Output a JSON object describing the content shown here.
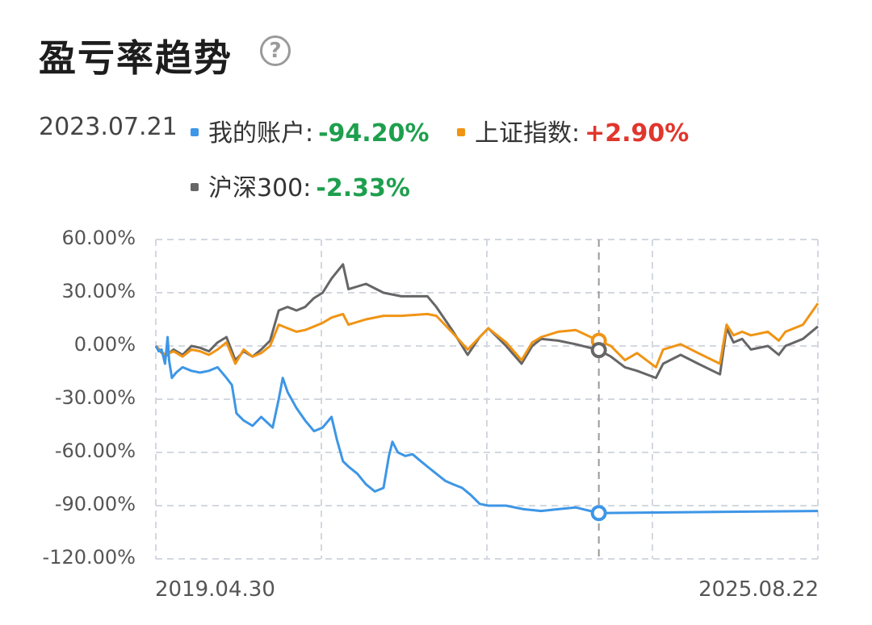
{
  "header": {
    "title": "盈亏率趋势",
    "help_icon": "question-circle-icon"
  },
  "tooltip": {
    "date": "2023.07.21",
    "entries": [
      {
        "label": "我的账户:",
        "value": "-94.20%",
        "dot_color": "#3d96e6",
        "value_color": "#1e9f4e"
      },
      {
        "label": "上证指数:",
        "value": "+2.90%",
        "dot_color": "#f09414",
        "value_color": "#e0362c"
      },
      {
        "label": "沪深300:",
        "value": "-2.33%",
        "dot_color": "#666666",
        "value_color": "#1e9f4e"
      }
    ]
  },
  "chart_data": {
    "type": "line",
    "x_start": "2019.04.30",
    "x_end": "2025.08.22",
    "ylim": [
      -120,
      60
    ],
    "y_ticks": [
      "60.00%",
      "30.00%",
      "0.00%",
      "-30.00%",
      "-60.00%",
      "-90.00%",
      "-120.00%"
    ],
    "grid": true,
    "cursor_date": "2023.07.21",
    "series": [
      {
        "name": "我的账户",
        "color": "#3d96e6",
        "points": [
          [
            "2019.04.30",
            0
          ],
          [
            "2019.05.10",
            -3
          ],
          [
            "2019.05.20",
            -2
          ],
          [
            "2019.06.01",
            -10
          ],
          [
            "2019.06.10",
            5
          ],
          [
            "2019.06.15",
            -8
          ],
          [
            "2019.06.25",
            -18
          ],
          [
            "2019.07.10",
            -15
          ],
          [
            "2019.08.01",
            -12
          ],
          [
            "2019.09.01",
            -14
          ],
          [
            "2019.10.01",
            -15
          ],
          [
            "2019.11.01",
            -14
          ],
          [
            "2019.12.01",
            -12
          ],
          [
            "2020.01.01",
            -18
          ],
          [
            "2020.01.20",
            -22
          ],
          [
            "2020.02.05",
            -38
          ],
          [
            "2020.03.01",
            -42
          ],
          [
            "2020.04.01",
            -45
          ],
          [
            "2020.05.01",
            -40
          ],
          [
            "2020.06.10",
            -46
          ],
          [
            "2020.07.01",
            -30
          ],
          [
            "2020.07.15",
            -18
          ],
          [
            "2020.08.01",
            -26
          ],
          [
            "2020.09.01",
            -35
          ],
          [
            "2020.10.01",
            -42
          ],
          [
            "2020.11.01",
            -48
          ],
          [
            "2020.12.01",
            -46
          ],
          [
            "2021.01.01",
            -40
          ],
          [
            "2021.01.20",
            -53
          ],
          [
            "2021.02.10",
            -65
          ],
          [
            "2021.03.01",
            -68
          ],
          [
            "2021.04.01",
            -72
          ],
          [
            "2021.05.01",
            -78
          ],
          [
            "2021.06.01",
            -82
          ],
          [
            "2021.07.01",
            -80
          ],
          [
            "2021.07.20",
            -62
          ],
          [
            "2021.08.01",
            -54
          ],
          [
            "2021.08.20",
            -60
          ],
          [
            "2021.09.15",
            -62
          ],
          [
            "2021.10.10",
            -61
          ],
          [
            "2021.11.01",
            -64
          ],
          [
            "2021.12.01",
            -68
          ],
          [
            "2022.01.01",
            -72
          ],
          [
            "2022.02.01",
            -76
          ],
          [
            "2022.03.01",
            -78
          ],
          [
            "2022.04.01",
            -80
          ],
          [
            "2022.05.01",
            -84
          ],
          [
            "2022.06.01",
            -89
          ],
          [
            "2022.07.01",
            -90
          ],
          [
            "2022.09.01",
            -90
          ],
          [
            "2022.11.01",
            -92
          ],
          [
            "2023.01.01",
            -93
          ],
          [
            "2023.03.01",
            -92
          ],
          [
            "2023.05.01",
            -91
          ],
          [
            "2023.07.21",
            -94.2
          ],
          [
            "2025.08.22",
            -93
          ]
        ]
      },
      {
        "name": "上证指数",
        "color": "#f09414",
        "points": [
          [
            "2019.04.30",
            0
          ],
          [
            "2019.06.01",
            -5
          ],
          [
            "2019.07.01",
            -3
          ],
          [
            "2019.08.01",
            -6
          ],
          [
            "2019.09.01",
            -2
          ],
          [
            "2019.10.01",
            -3
          ],
          [
            "2019.11.01",
            -5
          ],
          [
            "2019.12.01",
            -2
          ],
          [
            "2020.01.01",
            2
          ],
          [
            "2020.02.01",
            -10
          ],
          [
            "2020.03.01",
            -2
          ],
          [
            "2020.04.01",
            -6
          ],
          [
            "2020.05.01",
            -4
          ],
          [
            "2020.06.01",
            0
          ],
          [
            "2020.07.01",
            12
          ],
          [
            "2020.08.01",
            10
          ],
          [
            "2020.09.01",
            8
          ],
          [
            "2020.10.01",
            9
          ],
          [
            "2020.11.01",
            11
          ],
          [
            "2020.12.01",
            13
          ],
          [
            "2021.01.01",
            16
          ],
          [
            "2021.02.10",
            18
          ],
          [
            "2021.03.01",
            12
          ],
          [
            "2021.05.01",
            15
          ],
          [
            "2021.07.01",
            17
          ],
          [
            "2021.09.01",
            17
          ],
          [
            "2021.12.01",
            18
          ],
          [
            "2022.01.01",
            17
          ],
          [
            "2022.03.01",
            7
          ],
          [
            "2022.04.20",
            -2
          ],
          [
            "2022.06.01",
            5
          ],
          [
            "2022.07.01",
            10
          ],
          [
            "2022.09.01",
            2
          ],
          [
            "2022.10.25",
            -8
          ],
          [
            "2022.12.01",
            2
          ],
          [
            "2023.01.01",
            5
          ],
          [
            "2023.03.01",
            8
          ],
          [
            "2023.05.01",
            9
          ],
          [
            "2023.07.21",
            2.9
          ],
          [
            "2023.09.01",
            0
          ],
          [
            "2023.10.20",
            -8
          ],
          [
            "2023.12.01",
            -4
          ],
          [
            "2024.02.05",
            -12
          ],
          [
            "2024.03.01",
            -2
          ],
          [
            "2024.05.01",
            1
          ],
          [
            "2024.07.01",
            -4
          ],
          [
            "2024.09.15",
            -10
          ],
          [
            "2024.10.08",
            12
          ],
          [
            "2024.11.01",
            6
          ],
          [
            "2024.12.01",
            8
          ],
          [
            "2025.01.01",
            6
          ],
          [
            "2025.03.01",
            8
          ],
          [
            "2025.04.08",
            3
          ],
          [
            "2025.05.01",
            8
          ],
          [
            "2025.07.01",
            12
          ],
          [
            "2025.08.22",
            24
          ]
        ]
      },
      {
        "name": "沪深300",
        "color": "#666666",
        "points": [
          [
            "2019.04.30",
            0
          ],
          [
            "2019.06.01",
            -6
          ],
          [
            "2019.07.01",
            -2
          ],
          [
            "2019.08.01",
            -5
          ],
          [
            "2019.09.01",
            0
          ],
          [
            "2019.10.01",
            -1
          ],
          [
            "2019.11.01",
            -3
          ],
          [
            "2019.12.01",
            2
          ],
          [
            "2020.01.01",
            5
          ],
          [
            "2020.02.01",
            -8
          ],
          [
            "2020.03.01",
            -3
          ],
          [
            "2020.04.01",
            -6
          ],
          [
            "2020.05.01",
            -2
          ],
          [
            "2020.06.01",
            3
          ],
          [
            "2020.07.01",
            20
          ],
          [
            "2020.08.01",
            22
          ],
          [
            "2020.09.01",
            20
          ],
          [
            "2020.10.01",
            22
          ],
          [
            "2020.11.01",
            27
          ],
          [
            "2020.12.01",
            30
          ],
          [
            "2021.01.01",
            38
          ],
          [
            "2021.02.10",
            46
          ],
          [
            "2021.03.01",
            32
          ],
          [
            "2021.05.01",
            35
          ],
          [
            "2021.07.01",
            30
          ],
          [
            "2021.09.01",
            28
          ],
          [
            "2021.12.01",
            28
          ],
          [
            "2022.01.01",
            22
          ],
          [
            "2022.03.01",
            8
          ],
          [
            "2022.04.20",
            -5
          ],
          [
            "2022.06.01",
            5
          ],
          [
            "2022.07.01",
            10
          ],
          [
            "2022.09.01",
            0
          ],
          [
            "2022.10.25",
            -10
          ],
          [
            "2022.12.01",
            0
          ],
          [
            "2023.01.01",
            4
          ],
          [
            "2023.03.01",
            3
          ],
          [
            "2023.05.01",
            1
          ],
          [
            "2023.07.21",
            -2.33
          ],
          [
            "2023.09.01",
            -6
          ],
          [
            "2023.10.20",
            -12
          ],
          [
            "2023.12.01",
            -14
          ],
          [
            "2024.02.05",
            -18
          ],
          [
            "2024.03.01",
            -10
          ],
          [
            "2024.05.01",
            -5
          ],
          [
            "2024.07.01",
            -10
          ],
          [
            "2024.09.15",
            -16
          ],
          [
            "2024.10.08",
            10
          ],
          [
            "2024.11.01",
            2
          ],
          [
            "2024.12.01",
            4
          ],
          [
            "2025.01.01",
            -2
          ],
          [
            "2025.03.01",
            0
          ],
          [
            "2025.04.08",
            -5
          ],
          [
            "2025.05.01",
            0
          ],
          [
            "2025.07.01",
            4
          ],
          [
            "2025.08.22",
            11
          ]
        ]
      }
    ]
  }
}
